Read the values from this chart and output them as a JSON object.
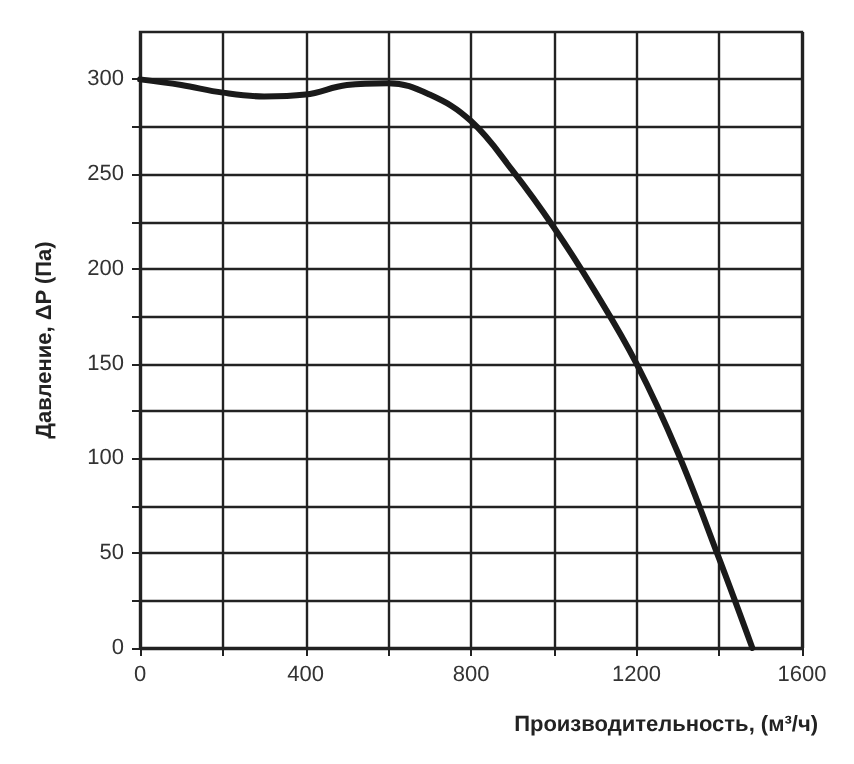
{
  "chart_data": {
    "type": "line",
    "xlabel": "Производительность, (м³/ч)",
    "ylabel": "Давление, ΔP (Па)",
    "x": [
      0,
      100,
      200,
      300,
      400,
      500,
      600,
      700,
      800,
      900,
      1000,
      1100,
      1200,
      1300,
      1400,
      1480
    ],
    "series": [
      {
        "color": "#1a1a1a",
        "values": [
          300,
          297,
          293,
          291,
          292,
          297,
          298,
          292,
          278,
          252,
          222,
          188,
          150,
          103,
          47,
          0
        ]
      }
    ],
    "xlim": [
      0,
      1600
    ],
    "ylim": [
      0,
      325
    ],
    "xticks": [
      0,
      {
        "value": 200,
        "label": null
      },
      400,
      {
        "value": 600,
        "label": null
      },
      800,
      {
        "value": 1000,
        "label": null
      },
      1200,
      {
        "value": 1400,
        "label": null
      },
      1600
    ],
    "yticks": [
      0,
      {
        "value": 25,
        "label": null
      },
      50,
      {
        "value": 75,
        "label": null
      },
      100,
      {
        "value": 125,
        "label": null
      },
      150,
      {
        "value": 175,
        "label": null
      },
      200,
      {
        "value": 225,
        "label": null
      },
      250,
      {
        "value": 275,
        "label": null
      },
      300
    ],
    "grid": true,
    "marker": "none",
    "line_style": "solid"
  }
}
